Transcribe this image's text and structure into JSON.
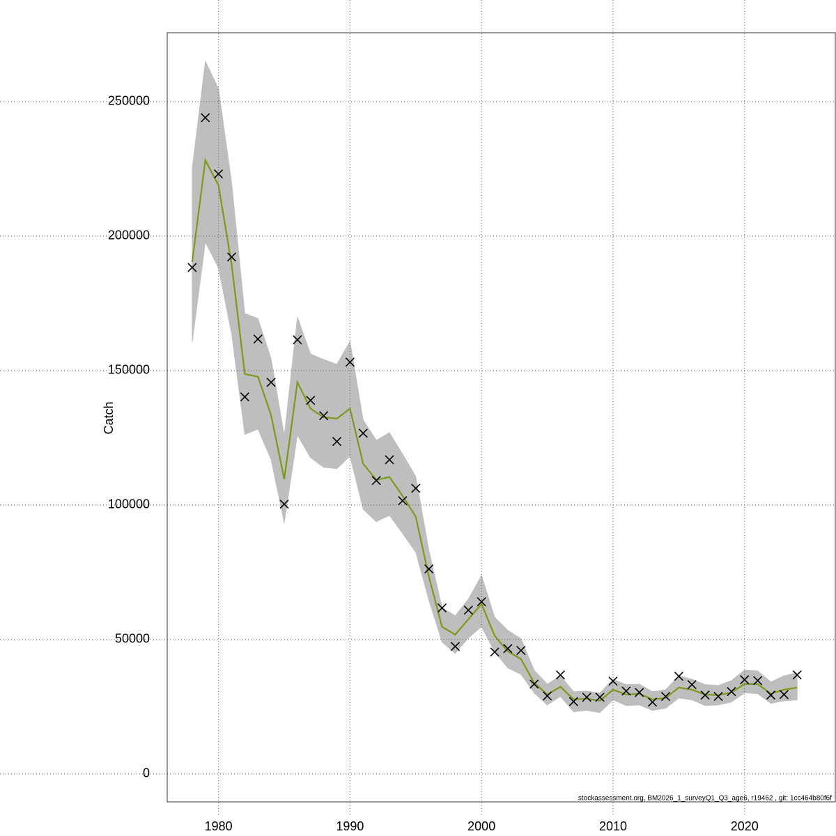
{
  "chart_data": {
    "type": "line",
    "y_label": "Catch",
    "footnote": "stockassessment.org, BM2026_1_surveyQ1_Q3_age6, r19462 , git: 1cc464b80f6f",
    "x": [
      1978,
      1979,
      1980,
      1981,
      1982,
      1983,
      1984,
      1985,
      1986,
      1987,
      1988,
      1989,
      1990,
      1991,
      1992,
      1993,
      1994,
      1995,
      1996,
      1997,
      1998,
      1999,
      2000,
      2001,
      2002,
      2003,
      2004,
      2005,
      2006,
      2007,
      2008,
      2009,
      2010,
      2011,
      2012,
      2013,
      2014,
      2015,
      2016,
      2017,
      2018,
      2019,
      2020,
      2021,
      2022,
      2023,
      2024
    ],
    "observed": {
      "marker": "x",
      "color": "#000000",
      "values": [
        188300,
        244000,
        223100,
        192200,
        140200,
        161700,
        145600,
        100300,
        161400,
        138900,
        133200,
        123600,
        153100,
        126700,
        109100,
        116800,
        101600,
        106200,
        76200,
        61700,
        47400,
        60900,
        64000,
        45300,
        46600,
        45900,
        33400,
        29000,
        36800,
        26900,
        28500,
        28500,
        34500,
        30800,
        30300,
        26700,
        28800,
        36300,
        33200,
        29300,
        28800,
        30600,
        35000,
        34700,
        29300,
        29500,
        36800
      ]
    },
    "fit": {
      "color": "#7a9a1a",
      "values": [
        190400,
        228200,
        218900,
        189400,
        148700,
        147700,
        133400,
        109600,
        145600,
        135800,
        132600,
        132100,
        135800,
        115300,
        109300,
        110400,
        103400,
        95600,
        73300,
        54700,
        51800,
        57500,
        63200,
        51300,
        45600,
        42700,
        33900,
        29500,
        32400,
        27700,
        28000,
        27200,
        31300,
        29500,
        29800,
        27700,
        28200,
        32100,
        31300,
        29500,
        29300,
        30300,
        33400,
        33400,
        29800,
        31300,
        32100
      ]
    },
    "band": {
      "color": "#bebebe",
      "upper": [
        225100,
        265000,
        254900,
        219900,
        171200,
        169400,
        154400,
        125900,
        169900,
        156200,
        154100,
        152300,
        160900,
        131600,
        124100,
        126900,
        118900,
        110600,
        83200,
        61900,
        58800,
        65000,
        73800,
        58300,
        53400,
        50300,
        38600,
        33400,
        36500,
        30600,
        30800,
        30100,
        35200,
        33200,
        33400,
        30600,
        31300,
        36500,
        35200,
        33200,
        32900,
        34700,
        38600,
        38300,
        34200,
        36500,
        37600
      ],
      "lower": [
        160400,
        197700,
        188100,
        163500,
        126200,
        128200,
        116800,
        93300,
        125900,
        117600,
        114000,
        113500,
        118100,
        98400,
        93800,
        96100,
        89400,
        82400,
        64500,
        49000,
        44800,
        50500,
        54700,
        45300,
        39400,
        37000,
        30100,
        25600,
        28800,
        23100,
        23600,
        22800,
        27500,
        25400,
        25600,
        23600,
        24400,
        28200,
        27500,
        25400,
        25600,
        26700,
        30100,
        29800,
        26200,
        27200,
        27500
      ]
    },
    "xlim": [
      1976.1,
      2026.9
    ],
    "ylim": [
      -10400,
      275600
    ],
    "xticks": [
      1980,
      1990,
      2000,
      2010,
      2020
    ],
    "yticks": [
      0,
      50000,
      100000,
      150000,
      200000,
      250000
    ],
    "grid": true
  }
}
